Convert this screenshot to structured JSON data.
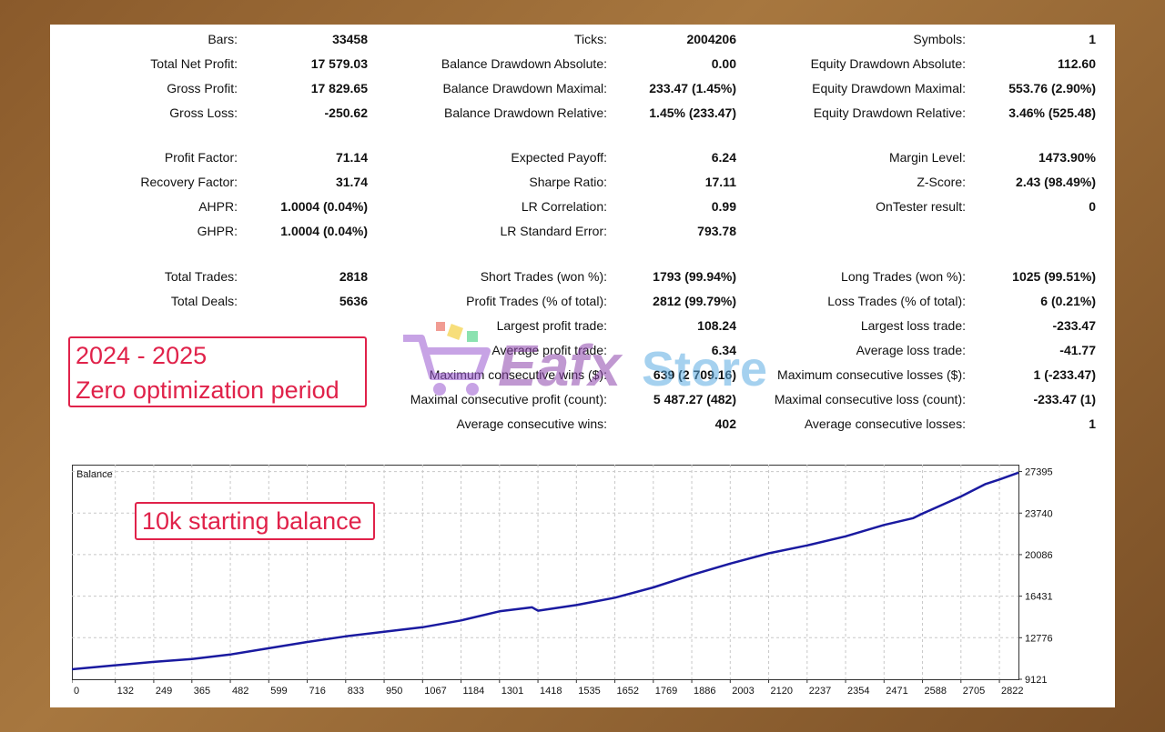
{
  "stats": {
    "col1": [
      {
        "label": "Bars:",
        "value": "33458"
      },
      {
        "label": "Total Net Profit:",
        "value": "17 579.03"
      },
      {
        "label": "Gross Profit:",
        "value": "17 829.65"
      },
      {
        "label": "Gross Loss:",
        "value": "-250.62"
      },
      {
        "label": "Profit Factor:",
        "value": "71.14"
      },
      {
        "label": "Recovery Factor:",
        "value": "31.74"
      },
      {
        "label": "AHPR:",
        "value": "1.0004 (0.04%)"
      },
      {
        "label": "GHPR:",
        "value": "1.0004 (0.04%)"
      },
      {
        "label": "Total Trades:",
        "value": "2818"
      },
      {
        "label": "Total Deals:",
        "value": "5636"
      }
    ],
    "col2": [
      {
        "label": "Ticks:",
        "value": "2004206"
      },
      {
        "label": "Balance Drawdown Absolute:",
        "value": "0.00"
      },
      {
        "label": "Balance Drawdown Maximal:",
        "value": "233.47 (1.45%)"
      },
      {
        "label": "Balance Drawdown Relative:",
        "value": "1.45% (233.47)"
      },
      {
        "label": "Expected Payoff:",
        "value": "6.24"
      },
      {
        "label": "Sharpe Ratio:",
        "value": "17.11"
      },
      {
        "label": "LR Correlation:",
        "value": "0.99"
      },
      {
        "label": "LR Standard Error:",
        "value": "793.78"
      },
      {
        "label": "Short Trades (won %):",
        "value": "1793 (99.94%)"
      },
      {
        "label": "Profit Trades (% of total):",
        "value": "2812 (99.79%)"
      },
      {
        "label": "Largest profit trade:",
        "value": "108.24"
      },
      {
        "label": "Average profit trade:",
        "value": "6.34"
      },
      {
        "label": "Maximum consecutive wins ($):",
        "value": "639 (2 709.16)"
      },
      {
        "label": "Maximal consecutive profit (count):",
        "value": "5 487.27 (482)"
      },
      {
        "label": "Average consecutive wins:",
        "value": "402"
      }
    ],
    "col3": [
      {
        "label": "Symbols:",
        "value": "1"
      },
      {
        "label": "Equity Drawdown Absolute:",
        "value": "112.60"
      },
      {
        "label": "Equity Drawdown Maximal:",
        "value": "553.76 (2.90%)"
      },
      {
        "label": "Equity Drawdown Relative:",
        "value": "3.46% (525.48)"
      },
      {
        "label": "Margin Level:",
        "value": "1473.90%"
      },
      {
        "label": "Z-Score:",
        "value": "2.43 (98.49%)"
      },
      {
        "label": "OnTester result:",
        "value": "0"
      },
      {
        "label": "Long Trades (won %):",
        "value": "1025 (99.51%)"
      },
      {
        "label": "Loss Trades (% of total):",
        "value": "6 (0.21%)"
      },
      {
        "label": "Largest loss trade:",
        "value": "-233.47"
      },
      {
        "label": "Average loss trade:",
        "value": "-41.77"
      },
      {
        "label": "Maximum consecutive losses ($):",
        "value": "1 (-233.47)"
      },
      {
        "label": "Maximal consecutive loss (count):",
        "value": "-233.47 (1)"
      },
      {
        "label": "Average consecutive losses:",
        "value": "1"
      }
    ]
  },
  "callouts": {
    "period_line1": "2024 - 2025",
    "period_line2": "Zero optimization period",
    "balance": "10k starting balance"
  },
  "watermark": {
    "brand": "Eafx",
    "suffix": "Store"
  },
  "colors": {
    "line": "#1a1aa0",
    "callout": "#e0224a",
    "grid": "#c8c8c8"
  },
  "chart_data": {
    "type": "line",
    "title": "Balance",
    "x_ticks": [
      0,
      132,
      249,
      365,
      482,
      599,
      716,
      833,
      950,
      1067,
      1184,
      1301,
      1418,
      1535,
      1652,
      1769,
      1886,
      2003,
      2120,
      2237,
      2354,
      2471,
      2588,
      2705,
      2822
    ],
    "y_ticks": [
      9121,
      12776,
      16431,
      20086,
      23740,
      27395
    ],
    "xlim": [
      0,
      2880
    ],
    "ylim": [
      9121,
      28000
    ],
    "series": [
      {
        "x": [
          0,
          132,
          249,
          365,
          482,
          599,
          716,
          833,
          950,
          1067,
          1184,
          1301,
          1400,
          1418,
          1535,
          1652,
          1769,
          1886,
          2003,
          2120,
          2237,
          2354,
          2471,
          2560,
          2588,
          2705,
          2780,
          2822,
          2880
        ],
        "y": [
          10000,
          10350,
          10650,
          10900,
          11300,
          11850,
          12400,
          12900,
          13300,
          13700,
          14300,
          15100,
          15450,
          15150,
          15650,
          16300,
          17200,
          18300,
          19300,
          20200,
          20900,
          21700,
          22700,
          23300,
          23700,
          25200,
          26300,
          26700,
          27300
        ]
      }
    ]
  }
}
